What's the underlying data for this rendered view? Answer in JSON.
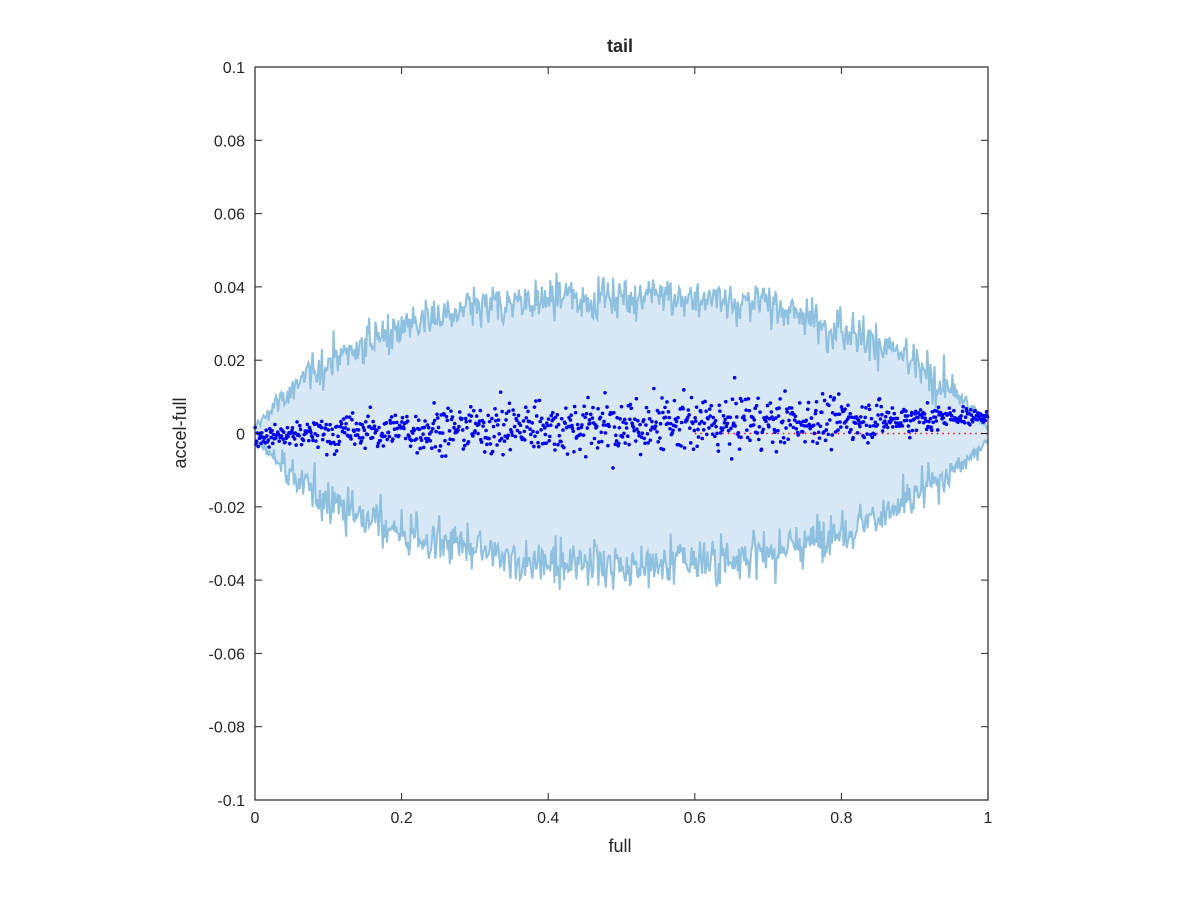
{
  "chart_data": {
    "type": "scatter",
    "title": "tail",
    "xlabel": "full",
    "ylabel": "accel-full",
    "xlim": [
      0,
      1
    ],
    "ylim": [
      -0.1,
      0.1
    ],
    "x_ticks": [
      0,
      0.2,
      0.4,
      0.6,
      0.8,
      1
    ],
    "x_tick_labels": [
      "0",
      "0.2",
      "0.4",
      "0.6",
      "0.8",
      "1"
    ],
    "y_ticks": [
      -0.1,
      -0.08,
      -0.06,
      -0.04,
      -0.02,
      0,
      0.02,
      0.04,
      0.06,
      0.08,
      0.1
    ],
    "y_tick_labels": [
      "-0.1",
      "-0.08",
      "-0.06",
      "-0.04",
      "-0.02",
      "0",
      "0.02",
      "0.04",
      "0.06",
      "0.08",
      "0.1"
    ],
    "grid": false,
    "band": {
      "description_x": [
        0,
        0.05,
        0.1,
        0.15,
        0.2,
        0.25,
        0.3,
        0.35,
        0.4,
        0.45,
        0.5,
        0.55,
        0.6,
        0.65,
        0.7,
        0.75,
        0.8,
        0.85,
        0.9,
        0.95,
        1
      ],
      "upper_mean": [
        0.002,
        0.012,
        0.019,
        0.025,
        0.029,
        0.032,
        0.034,
        0.035,
        0.036,
        0.037,
        0.037,
        0.037,
        0.037,
        0.036,
        0.035,
        0.032,
        0.029,
        0.025,
        0.019,
        0.012,
        0.002
      ],
      "lower_mean": [
        -0.002,
        -0.011,
        -0.018,
        -0.023,
        -0.027,
        -0.03,
        -0.032,
        -0.034,
        -0.035,
        -0.035,
        -0.036,
        -0.035,
        -0.035,
        -0.034,
        -0.032,
        -0.03,
        -0.027,
        -0.023,
        -0.018,
        -0.011,
        -0.002
      ],
      "noise": 0.003,
      "fill_color": "#d9e8f5",
      "line_color": "#8ec0e0"
    },
    "scatter_trend": {
      "x": [
        0,
        0.1,
        0.2,
        0.3,
        0.4,
        0.5,
        0.6,
        0.7,
        0.8,
        0.9,
        1
      ],
      "y_center": [
        -0.001,
        0.0,
        0.001,
        0.0015,
        0.002,
        0.002,
        0.0025,
        0.003,
        0.0035,
        0.004,
        0.005
      ],
      "spread": [
        0.001,
        0.0025,
        0.003,
        0.0035,
        0.0038,
        0.0038,
        0.0038,
        0.0035,
        0.003,
        0.002,
        0.001
      ],
      "count": 1000,
      "color": "#0000ff"
    },
    "reference_line": {
      "y": 0,
      "x_start": 0.6,
      "x_end": 1,
      "color": "#ff0000",
      "style": "dotted"
    }
  }
}
